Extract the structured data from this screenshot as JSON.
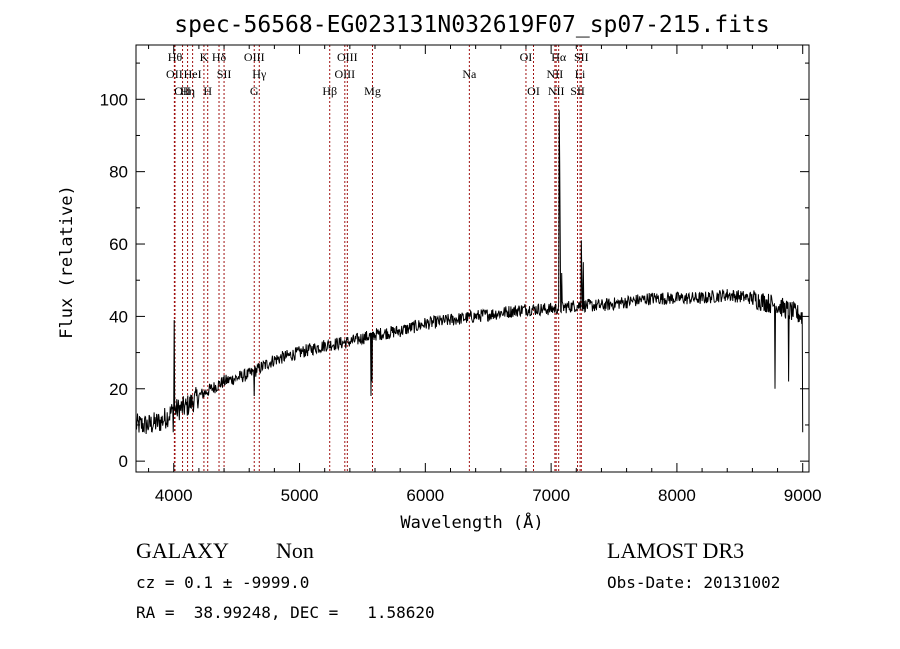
{
  "chart_data": {
    "type": "line",
    "title": "spec-56568-EG023131N032619F07_sp07-215.fits",
    "xlabel": "Wavelength (Å)",
    "ylabel": "Flux (relative)",
    "xlim": [
      3700,
      9050
    ],
    "ylim": [
      -3,
      115
    ],
    "x_ticks": [
      4000,
      5000,
      6000,
      7000,
      8000,
      9000
    ],
    "y_ticks": [
      0,
      20,
      40,
      60,
      80,
      100
    ],
    "spectrum_anchors": [
      [
        3700,
        10
      ],
      [
        3800,
        10
      ],
      [
        3900,
        11
      ],
      [
        4000,
        14
      ],
      [
        4100,
        15
      ],
      [
        4200,
        18
      ],
      [
        4300,
        20
      ],
      [
        4400,
        22
      ],
      [
        4500,
        23
      ],
      [
        4600,
        24
      ],
      [
        4700,
        26
      ],
      [
        4800,
        28
      ],
      [
        4900,
        29
      ],
      [
        5000,
        30
      ],
      [
        5200,
        32
      ],
      [
        5400,
        33
      ],
      [
        5600,
        35
      ],
      [
        5800,
        36
      ],
      [
        6000,
        38
      ],
      [
        6200,
        39
      ],
      [
        6400,
        40
      ],
      [
        6600,
        41
      ],
      [
        6800,
        42
      ],
      [
        7000,
        42
      ],
      [
        7200,
        43
      ],
      [
        7400,
        43
      ],
      [
        7600,
        44
      ],
      [
        7800,
        45
      ],
      [
        8000,
        45
      ],
      [
        8200,
        45
      ],
      [
        8400,
        46
      ],
      [
        8600,
        45
      ],
      [
        8800,
        43
      ],
      [
        9000,
        40
      ]
    ],
    "spectrum_features": [
      {
        "x": 4005,
        "y": 39
      },
      {
        "x": 3996,
        "y": 8
      },
      {
        "x": 4640,
        "y": 18
      },
      {
        "x": 5570,
        "y": 18
      },
      {
        "x": 5577,
        "y": 22
      },
      {
        "x": 7063,
        "y": 97
      },
      {
        "x": 7068,
        "y": 82
      },
      {
        "x": 7084,
        "y": 52
      },
      {
        "x": 7240,
        "y": 61
      },
      {
        "x": 7255,
        "y": 55
      },
      {
        "x": 8780,
        "y": 20
      },
      {
        "x": 8890,
        "y": 22
      },
      {
        "x": 9000,
        "y": 8
      }
    ],
    "lines": [
      {
        "x": 4005,
        "label": "OII",
        "row": 2
      },
      {
        "x": 4070,
        "label": "OII",
        "row": 3
      },
      {
        "x": 4010,
        "label": "Hθ",
        "row": 1
      },
      {
        "x": 4110,
        "label": "Hη",
        "row": 3
      },
      {
        "x": 4150,
        "label": "HeI",
        "row": 2
      },
      {
        "x": 4240,
        "label": "K",
        "row": 1
      },
      {
        "x": 4270,
        "label": "H",
        "row": 3
      },
      {
        "x": 4360,
        "label": "Hδ",
        "row": 1
      },
      {
        "x": 4400,
        "label": "SII",
        "row": 2
      },
      {
        "x": 4640,
        "label": "OIII",
        "row": 1
      },
      {
        "x": 4680,
        "label": "Hγ",
        "row": 2
      },
      {
        "x": 4640,
        "label": "G",
        "row": 3
      },
      {
        "x": 5240,
        "label": "Hβ",
        "row": 3
      },
      {
        "x": 5380,
        "label": "OIII",
        "row": 1
      },
      {
        "x": 5360,
        "label": "OIII",
        "row": 2
      },
      {
        "x": 5580,
        "label": "Mg",
        "row": 3
      },
      {
        "x": 6350,
        "label": "Na",
        "row": 2
      },
      {
        "x": 6800,
        "label": "OI",
        "row": 1
      },
      {
        "x": 6860,
        "label": "OI",
        "row": 3
      },
      {
        "x": 7060,
        "label": "Hα",
        "row": 1
      },
      {
        "x": 7030,
        "label": "NII",
        "row": 2
      },
      {
        "x": 7040,
        "label": "NII",
        "row": 3
      },
      {
        "x": 7240,
        "label": "SII",
        "row": 1
      },
      {
        "x": 7230,
        "label": "Li",
        "row": 2
      },
      {
        "x": 7210,
        "label": "SII",
        "row": 3
      }
    ]
  },
  "footer": {
    "class_label": "GALAXY",
    "subclass": "Non",
    "survey": "LAMOST DR3",
    "cz_line": "cz = 0.1 ± -9999.0",
    "obs_date": "Obs-Date: 20131002",
    "coords": "RA =  38.99248, DEC =   1.58620"
  }
}
